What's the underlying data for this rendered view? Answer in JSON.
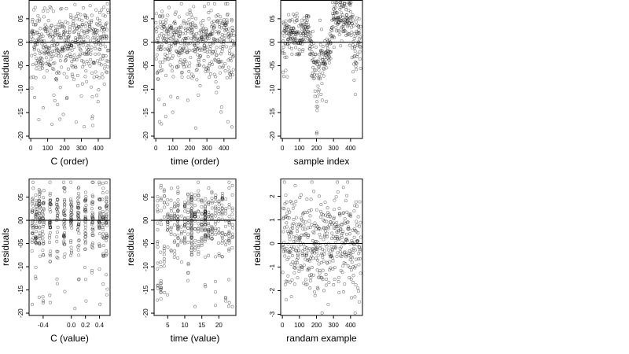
{
  "chart_data": [
    {
      "type": "scatter",
      "xlabel": "C (order)",
      "ylabel": "residuals",
      "xlim": [
        -10,
        470
      ],
      "ylim": [
        -2.05,
        0.9
      ],
      "xticks": [
        0,
        100,
        200,
        300,
        400
      ],
      "yticks": [
        -2.0,
        -1.5,
        -1.0,
        -0.5,
        0.0,
        0.5
      ],
      "ytick_labels": [
        "-20",
        "-15",
        "-10",
        "-05",
        "00",
        "05"
      ],
      "hline": 0,
      "n_points": 460,
      "distribution": "x: order index 1..460; residuals mostly within -0.6..0.8, mean ~0.05, with sparse low outliers to about -1.9"
    },
    {
      "type": "scatter",
      "xlabel": "time (order)",
      "ylabel": "residuals",
      "xlim": [
        -10,
        470
      ],
      "ylim": [
        -2.05,
        0.9
      ],
      "xticks": [
        0,
        100,
        200,
        300,
        400
      ],
      "yticks": [
        -2.0,
        -1.5,
        -1.0,
        -0.5,
        0.0,
        0.5
      ],
      "ytick_labels": [
        "-20",
        "-15",
        "-10",
        "-05",
        "00",
        "05"
      ],
      "hline": 0,
      "n_points": 460,
      "distribution": "x: order index 1..460; residuals mostly within -0.6..0.8, low outliers near x=10..80 down to about -1.4"
    },
    {
      "type": "scatter",
      "xlabel": "sample index",
      "ylabel": "residuals",
      "xlim": [
        -10,
        470
      ],
      "ylim": [
        -2.05,
        0.9
      ],
      "xticks": [
        0,
        100,
        200,
        300,
        400
      ],
      "yticks": [
        -2.0,
        -1.5,
        -1.0,
        -0.5,
        0.0,
        0.5
      ],
      "ytick_labels": [
        "-20",
        "-15",
        "-10",
        "-05",
        "00",
        "05"
      ],
      "hline": 0,
      "n_points": 460,
      "distribution": "x: index 1..460; residuals follow structured bands, upward sweep near 100-140, deep drop to about -1.9 near 200, high cluster 0.4-0.9 near 300-400"
    },
    {
      "type": "scatter",
      "xlabel": "C (value)",
      "ylabel": "residuals",
      "xlim": [
        -0.6,
        0.55
      ],
      "ylim": [
        -2.05,
        0.9
      ],
      "xticks": [
        -0.4,
        0.0,
        0.2,
        0.4
      ],
      "xtick_labels": [
        "-0.4",
        "0.0",
        "0.2",
        "0.4"
      ],
      "yticks": [
        -2.0,
        -1.5,
        -1.0,
        -0.5,
        0.0,
        0.5
      ],
      "ytick_labels": [
        "-20",
        "-15",
        "-10",
        "-05",
        "00",
        "05"
      ],
      "hline": 0,
      "n_points": 460,
      "distribution": "x: C values in vertical stripes at about -0.55, -0.5, -0.4, -0.3, -0.2, -0.1, 0.0, 0.1, 0.2, 0.3, 0.4, 0.45, 0.5; residuals -0.6..0.8 with low outliers"
    },
    {
      "type": "scatter",
      "xlabel": "time (value)",
      "ylabel": "residuals",
      "xlim": [
        1,
        25
      ],
      "ylim": [
        -2.05,
        0.9
      ],
      "xticks": [
        5,
        10,
        15,
        20
      ],
      "yticks": [
        -2.0,
        -1.5,
        -1.0,
        -0.5,
        0.0,
        0.5
      ],
      "ytick_labels": [
        "-20",
        "-15",
        "-10",
        "-05",
        "00",
        "05"
      ],
      "hline": 0,
      "n_points": 460,
      "distribution": "x: time values roughly 2..24 with dense stripes near 12; residuals -0.6..0.8, low outliers near x=2..4 down to about -1.9"
    },
    {
      "type": "scatter",
      "xlabel": "randam example",
      "ylabel": "residuals",
      "xlim": [
        -10,
        470
      ],
      "ylim": [
        -3.05,
        2.75
      ],
      "xticks": [
        0,
        100,
        200,
        300,
        400
      ],
      "yticks": [
        -3,
        -2,
        -1,
        0,
        1,
        2
      ],
      "ytick_labels": [
        "-3",
        "-2",
        "-1",
        "0",
        "1",
        "2"
      ],
      "hline": 0,
      "n_points": 460,
      "distribution": "x: index 1..460; y: standard normal noise, range about -3..2.6"
    }
  ]
}
